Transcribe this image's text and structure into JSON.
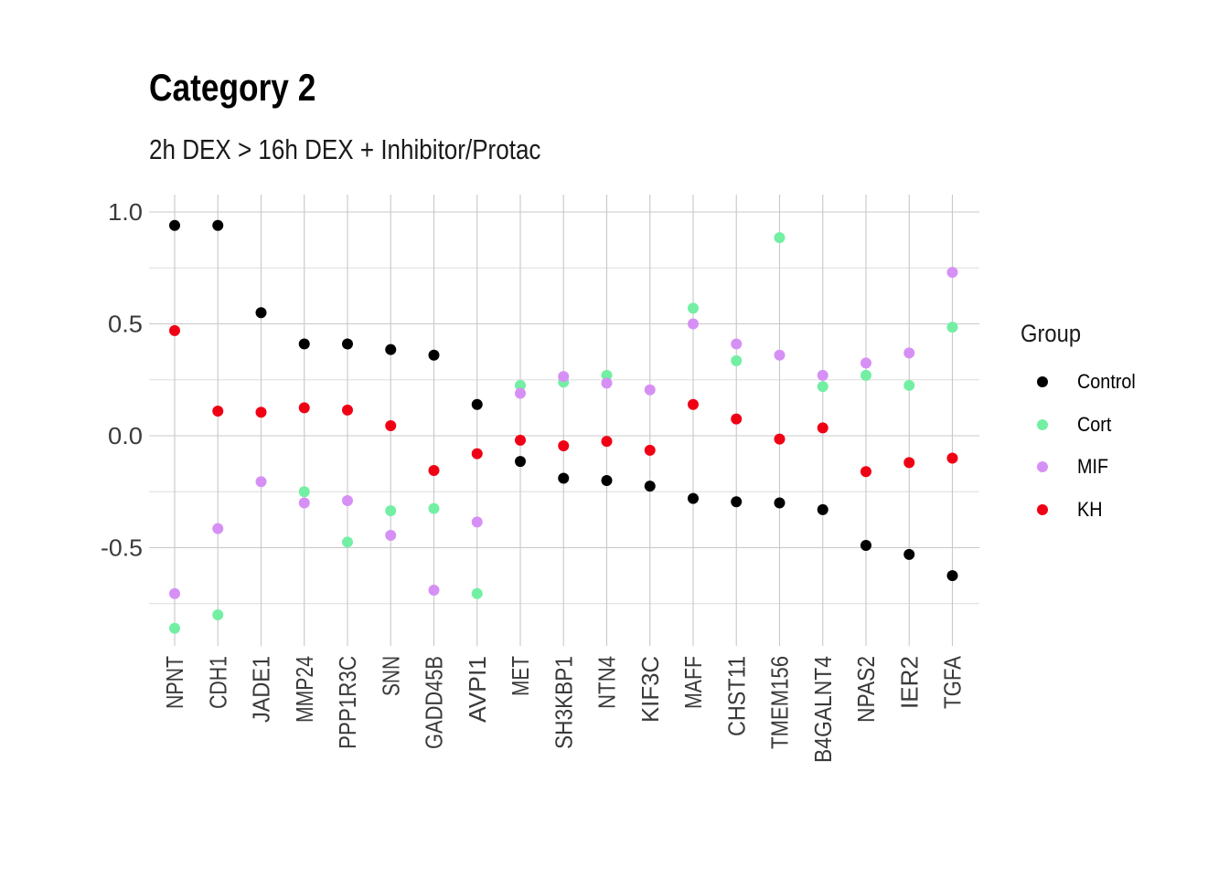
{
  "chart_data": {
    "type": "scatter",
    "title": "Category 2",
    "subtitle": "2h DEX > 16h DEX + Inhibitor/Protac",
    "xlabel": "",
    "ylabel": "",
    "categories": [
      "NPNT",
      "CDH1",
      "JADE1",
      "MMP24",
      "PPP1R3C",
      "SNN",
      "GADD45B",
      "AVPI1",
      "MET",
      "SH3KBP1",
      "NTN4",
      "KIF3C",
      "MAFF",
      "CHST11",
      "TMEM156",
      "B4GALNT4",
      "NPAS2",
      "IER2",
      "TGFA"
    ],
    "yticks": [
      1.0,
      0.5,
      0.0,
      -0.5
    ],
    "ytick_labels": [
      "1.0",
      "0.5",
      "0.0",
      "-0.5"
    ],
    "ylim": [
      -0.94,
      1.03
    ],
    "grid": true,
    "legend": {
      "title": "Group",
      "position": "right"
    },
    "series": [
      {
        "name": "Control",
        "color": "#000000",
        "values": [
          0.94,
          0.94,
          0.55,
          0.41,
          0.41,
          0.385,
          0.36,
          0.14,
          -0.115,
          -0.19,
          -0.2,
          -0.225,
          -0.28,
          -0.295,
          -0.3,
          -0.33,
          -0.49,
          -0.53,
          -0.625
        ]
      },
      {
        "name": "Cort",
        "color": "#73EFA4",
        "values": [
          -0.86,
          -0.8,
          null,
          -0.25,
          -0.475,
          -0.335,
          -0.325,
          -0.705,
          0.225,
          0.24,
          0.27,
          null,
          0.57,
          0.335,
          0.885,
          0.22,
          0.27,
          0.225,
          0.485
        ]
      },
      {
        "name": "MIF",
        "color": "#D690F5",
        "values": [
          -0.705,
          -0.415,
          -0.205,
          -0.3,
          -0.29,
          -0.445,
          -0.69,
          -0.385,
          0.19,
          0.265,
          0.235,
          0.205,
          0.5,
          0.41,
          0.36,
          0.27,
          0.325,
          0.37,
          0.73
        ]
      },
      {
        "name": "KH",
        "color": "#F00014",
        "values": [
          0.47,
          0.11,
          0.105,
          0.125,
          0.115,
          0.045,
          -0.155,
          -0.08,
          -0.02,
          -0.045,
          -0.025,
          -0.065,
          0.14,
          0.075,
          -0.015,
          0.035,
          -0.16,
          -0.12,
          -0.1
        ]
      }
    ]
  }
}
